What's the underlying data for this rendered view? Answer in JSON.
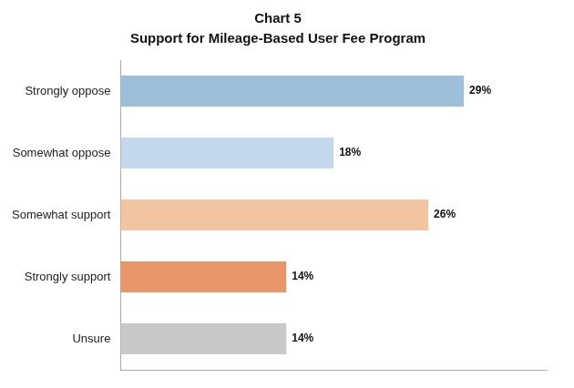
{
  "chart_data": {
    "type": "bar",
    "orientation": "horizontal",
    "title": "Chart 5",
    "subtitle": "Support for Mileage-Based User Fee Program",
    "categories": [
      "Strongly oppose",
      "Somewhat oppose",
      "Somewhat support",
      "Strongly support",
      "Unsure"
    ],
    "values": [
      29,
      18,
      26,
      14,
      14
    ],
    "value_labels": [
      "29%",
      "18%",
      "26%",
      "14%",
      "14%"
    ],
    "colors": [
      "#9dbfda",
      "#c3d8ea",
      "#f2c4a0",
      "#e8956a",
      "#c8c8c8"
    ],
    "xlim": [
      0,
      36
    ],
    "grid": false,
    "data_labels": true,
    "tick_labels": "y"
  }
}
